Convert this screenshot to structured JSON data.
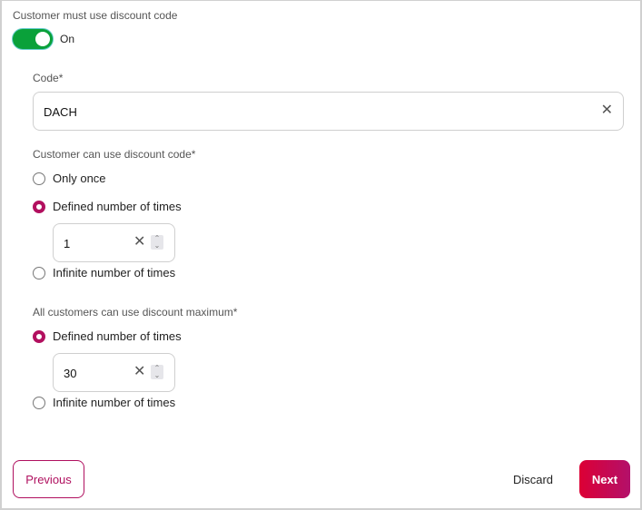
{
  "must_use_code": {
    "label": "Customer must use discount code",
    "toggle_state": true,
    "toggle_label": "On"
  },
  "code": {
    "label": "Code*",
    "value": "DACH",
    "clear_icon": "close-icon"
  },
  "usage_per_customer": {
    "label": "Customer can use discount code*",
    "options": [
      {
        "label": "Only once",
        "selected": false
      },
      {
        "label": "Defined number of times",
        "selected": true
      },
      {
        "label": "Infinite number of times",
        "selected": false
      }
    ],
    "count_value": "1"
  },
  "usage_all_customers": {
    "label": "All customers can use discount maximum*",
    "options": [
      {
        "label": "Defined number of times",
        "selected": true
      },
      {
        "label": "Infinite number of times",
        "selected": false
      }
    ],
    "count_value": "30"
  },
  "footer": {
    "previous": "Previous",
    "discard": "Discard",
    "next": "Next"
  },
  "colors": {
    "accent": "#b2105f",
    "toggle_on": "#0aa13a",
    "next_gradient": [
      "#dc0035",
      "#b3106a"
    ]
  }
}
